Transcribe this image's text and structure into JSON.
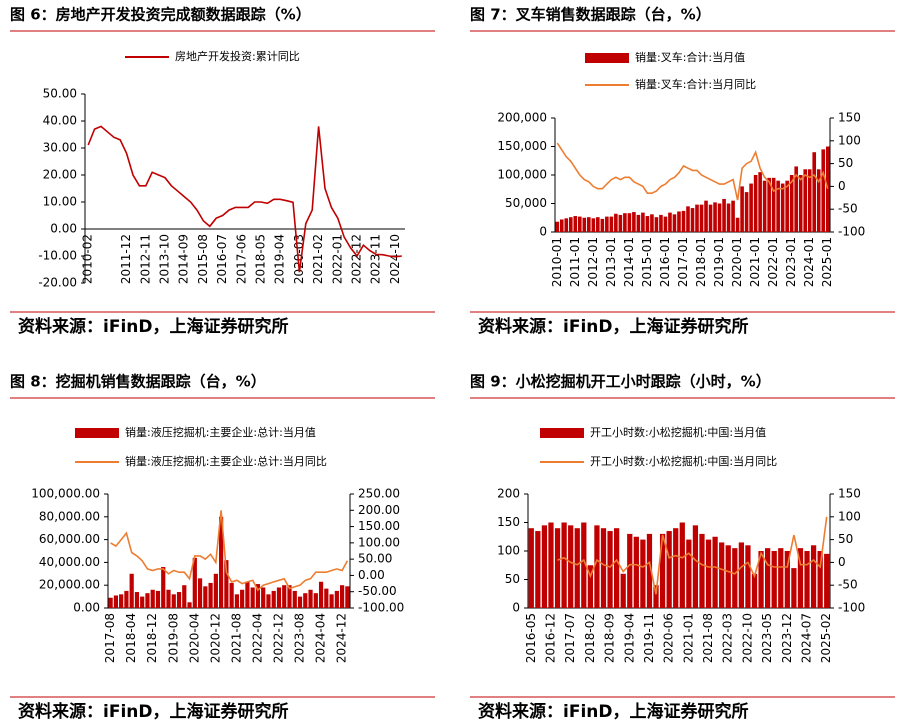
{
  "chart_data": [
    {
      "type": "line",
      "title": "图 6：房地产开发投资完成额数据跟踪（%）",
      "source": "资料来源：iFinD，上海证券研究所",
      "categories": [
        "2010-02",
        null,
        null,
        null,
        null,
        null,
        "2011-12",
        null,
        null,
        "2012-11",
        null,
        null,
        "2013-10",
        null,
        null,
        "2014-09",
        null,
        null,
        "2015-08",
        null,
        null,
        "2016-07",
        null,
        null,
        "2017-06",
        null,
        null,
        "2018-05",
        null,
        null,
        "2019-04",
        null,
        null,
        "2020-03",
        null,
        null,
        "2021-02",
        null,
        null,
        "2022-01",
        null,
        null,
        "2022-12",
        null,
        null,
        "2023-11",
        null,
        null,
        "2024-10",
        null
      ],
      "series": [
        {
          "name": "房地产开发投资:累计同比",
          "type": "line",
          "color": "#c00000",
          "values": [
            31.1,
            37,
            38,
            36,
            34,
            33,
            28,
            20,
            16,
            16,
            21,
            20,
            19,
            16,
            14,
            12,
            10,
            7,
            3,
            1,
            4,
            5,
            7,
            8,
            8,
            8,
            10,
            10,
            9.5,
            11,
            11,
            10.5,
            9.9,
            -16,
            2,
            7,
            38,
            15,
            8,
            4,
            -3,
            -7,
            -10,
            -6,
            -8,
            -9.4,
            -9.5,
            -10,
            -10.3,
            -10
          ]
        }
      ],
      "ylim": [
        -20,
        50
      ],
      "yticks": [
        {
          "value": -20,
          "label": "-20.00"
        },
        {
          "value": -10,
          "label": "-10.00"
        },
        {
          "value": 0,
          "label": "0.00"
        },
        {
          "value": 10,
          "label": "10.00"
        },
        {
          "value": 20,
          "label": "20.00"
        },
        {
          "value": 30,
          "label": "30.00"
        },
        {
          "value": 40,
          "label": "40.00"
        },
        {
          "value": 50,
          "label": "50.00"
        }
      ]
    },
    {
      "type": "bar_line",
      "title": "图 7：叉车销售数据跟踪（台，%）",
      "source": "资料来源：iFinD，上海证券研究所",
      "categories": [
        "2010-01",
        null,
        null,
        null,
        "2011-01",
        null,
        null,
        null,
        "2012-01",
        null,
        null,
        null,
        "2013-01",
        null,
        null,
        null,
        "2014-01",
        null,
        null,
        null,
        "2015-01",
        null,
        null,
        null,
        "2016-01",
        null,
        null,
        null,
        "2017-01",
        null,
        null,
        null,
        "2018-01",
        null,
        null,
        null,
        "2019-01",
        null,
        null,
        null,
        "2020-01",
        null,
        null,
        null,
        "2021-01",
        null,
        null,
        null,
        "2022-01",
        null,
        null,
        null,
        "2023-01",
        null,
        null,
        null,
        "2024-01",
        null,
        null,
        null,
        "2025-01"
      ],
      "series": [
        {
          "name": "销量:叉车:合计:当月值",
          "type": "bar",
          "color": "#c00000",
          "values": [
            18000,
            22000,
            24000,
            26000,
            28000,
            27000,
            25000,
            26000,
            24000,
            26000,
            23000,
            27000,
            27000,
            32000,
            30000,
            33000,
            33000,
            35000,
            30000,
            34000,
            28000,
            31000,
            26000,
            30000,
            27000,
            34000,
            31000,
            36000,
            37000,
            45000,
            42000,
            48000,
            48000,
            55000,
            48000,
            52000,
            50000,
            58000,
            50000,
            55000,
            25000,
            80000,
            70000,
            85000,
            100000,
            105000,
            90000,
            95000,
            95000,
            90000,
            85000,
            90000,
            100000,
            115000,
            100000,
            110000,
            110000,
            140000,
            110000,
            145000,
            150000
          ]
        },
        {
          "name": "销量:叉车:合计:当月同比",
          "type": "line",
          "axis": "y2",
          "color": "#ed7d31",
          "values": [
            95,
            80,
            65,
            55,
            40,
            25,
            15,
            10,
            0,
            -5,
            -5,
            5,
            15,
            20,
            15,
            20,
            20,
            10,
            5,
            0,
            -15,
            -15,
            -10,
            0,
            5,
            15,
            20,
            30,
            45,
            40,
            35,
            35,
            25,
            20,
            15,
            10,
            5,
            5,
            10,
            15,
            -30,
            40,
            50,
            55,
            75,
            40,
            20,
            10,
            -10,
            -5,
            -5,
            0,
            10,
            25,
            15,
            25,
            20,
            25,
            10,
            30,
            -5
          ]
        }
      ],
      "ylim": [
        0,
        200000
      ],
      "yticks": [
        0,
        {
          "value": 50000,
          "label": "50,000"
        },
        {
          "value": 100000,
          "label": "100,000"
        },
        {
          "value": 150000,
          "label": "150,000"
        },
        {
          "value": 200000,
          "label": "200,000"
        }
      ],
      "y2lim": [
        -100,
        150
      ],
      "y2ticks": [
        -100,
        -50,
        0,
        50,
        100,
        150
      ]
    },
    {
      "type": "bar_line",
      "title": "图 8：挖掘机销售数据跟踪（台，%）",
      "source": "资料来源：iFinD，上海证券研究所",
      "categories": [
        "2017-08",
        null,
        null,
        null,
        "2018-04",
        null,
        null,
        null,
        "2018-12",
        null,
        null,
        null,
        "2019-08",
        null,
        null,
        null,
        "2020-04",
        null,
        null,
        null,
        "2020-12",
        null,
        null,
        null,
        "2021-08",
        null,
        null,
        null,
        "2022-04",
        null,
        null,
        null,
        "2022-12",
        null,
        null,
        null,
        "2023-08",
        null,
        null,
        null,
        "2024-04",
        null,
        null,
        null,
        "2024-12",
        null
      ],
      "series": [
        {
          "name": "销量:液压挖掘机:主要企业:总计:当月值",
          "type": "bar",
          "color": "#c00000",
          "values": [
            9000,
            11000,
            12000,
            15000,
            30000,
            14000,
            10000,
            13000,
            16000,
            15000,
            36000,
            16000,
            12000,
            14000,
            20000,
            5000,
            44000,
            26000,
            19000,
            22000,
            30000,
            80000,
            42000,
            22000,
            12000,
            16000,
            23000,
            18000,
            21000,
            18000,
            12000,
            15000,
            18000,
            20000,
            20000,
            15000,
            10000,
            13000,
            16000,
            13000,
            23000,
            17000,
            12000,
            15000,
            20000,
            19000
          ]
        },
        {
          "name": "销量:液压挖掘机:主要企业:总计:当月同比",
          "type": "line",
          "axis": "y2",
          "color": "#ed7d31",
          "values": [
            100,
            90,
            110,
            130,
            70,
            60,
            45,
            20,
            15,
            20,
            20,
            5,
            15,
            10,
            10,
            -10,
            60,
            60,
            50,
            65,
            40,
            200,
            10,
            -20,
            -15,
            -25,
            -20,
            -15,
            -45,
            -30,
            -25,
            -20,
            -15,
            -10,
            -40,
            -35,
            -30,
            -15,
            -10,
            10,
            10,
            10,
            15,
            20,
            15,
            45
          ]
        }
      ],
      "ylim": [
        0,
        100000
      ],
      "yticks": [
        {
          "value": 0,
          "label": "0.00"
        },
        {
          "value": 20000,
          "label": "20,000.00"
        },
        {
          "value": 40000,
          "label": "40,000.00"
        },
        {
          "value": 60000,
          "label": "60,000.00"
        },
        {
          "value": 80000,
          "label": "80,000.00"
        },
        {
          "value": 100000,
          "label": "100,000.00"
        }
      ],
      "y2lim": [
        -100,
        250
      ],
      "y2ticks": [
        {
          "value": -100,
          "label": "-100.00"
        },
        {
          "value": -50,
          "label": "-50.00"
        },
        {
          "value": 0,
          "label": "0.00"
        },
        {
          "value": 50,
          "label": "50.00"
        },
        {
          "value": 100,
          "label": "100.00"
        },
        {
          "value": 150,
          "label": "150.00"
        },
        {
          "value": 200,
          "label": "200.00"
        },
        {
          "value": 250,
          "label": "250.00"
        }
      ]
    },
    {
      "type": "bar_line",
      "title": "图 9：小松挖掘机开工小时跟踪（小时，%）",
      "source": "资料来源：iFinD，上海证券研究所",
      "categories": [
        "2016-05",
        null,
        null,
        "2016-12",
        null,
        null,
        "2017-07",
        null,
        null,
        "2018-02",
        null,
        null,
        "2018-09",
        null,
        null,
        "2019-04",
        null,
        null,
        "2019-11",
        null,
        null,
        "2020-06",
        null,
        null,
        "2021-01",
        null,
        null,
        "2021-08",
        null,
        null,
        "2022-03",
        null,
        null,
        "2022-10",
        null,
        null,
        "2023-05",
        null,
        null,
        "2023-12",
        null,
        null,
        "2024-07",
        null,
        null,
        "2025-02"
      ],
      "series": [
        {
          "name": "开工小时数:小松挖掘机:中国:当月值",
          "type": "bar",
          "color": "#c00000",
          "values": [
            140,
            135,
            145,
            150,
            140,
            150,
            145,
            140,
            150,
            75,
            145,
            140,
            135,
            140,
            60,
            130,
            125,
            120,
            130,
            40,
            130,
            135,
            140,
            150,
            120,
            145,
            130,
            120,
            125,
            115,
            110,
            105,
            115,
            110,
            60,
            100,
            105,
            100,
            105,
            100,
            70,
            105,
            100,
            110,
            100,
            95
          ]
        },
        {
          "name": "开工小时数:小松挖掘机:中国:当月同比",
          "type": "line",
          "axis": "y2",
          "color": "#ed7d31",
          "values": [
            null,
            null,
            null,
            null,
            5,
            10,
            0,
            -5,
            5,
            -30,
            5,
            -5,
            -10,
            5,
            -20,
            -5,
            -5,
            -10,
            0,
            -70,
            60,
            10,
            15,
            10,
            20,
            5,
            -5,
            -10,
            -10,
            -15,
            -20,
            -25,
            -10,
            0,
            -30,
            20,
            -5,
            -10,
            -10,
            -10,
            60,
            -5,
            -5,
            5,
            -10,
            100
          ]
        }
      ],
      "ylim": [
        0,
        200
      ],
      "yticks": [
        0,
        50,
        100,
        150,
        200
      ],
      "y2lim": [
        -100,
        150
      ],
      "y2ticks": [
        -100,
        -50,
        0,
        50,
        100,
        150
      ]
    }
  ]
}
